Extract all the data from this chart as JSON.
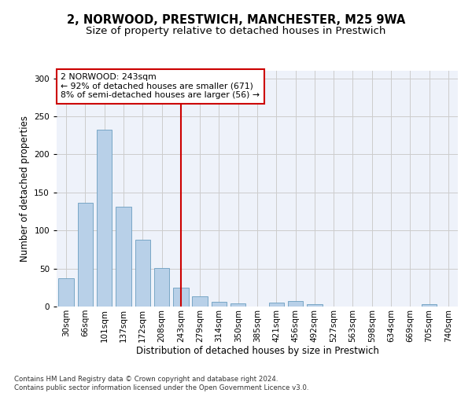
{
  "title1": "2, NORWOOD, PRESTWICH, MANCHESTER, M25 9WA",
  "title2": "Size of property relative to detached houses in Prestwich",
  "xlabel": "Distribution of detached houses by size in Prestwich",
  "ylabel": "Number of detached properties",
  "categories": [
    "30sqm",
    "66sqm",
    "101sqm",
    "137sqm",
    "172sqm",
    "208sqm",
    "243sqm",
    "279sqm",
    "314sqm",
    "350sqm",
    "385sqm",
    "421sqm",
    "456sqm",
    "492sqm",
    "527sqm",
    "563sqm",
    "598sqm",
    "634sqm",
    "669sqm",
    "705sqm",
    "740sqm"
  ],
  "values": [
    37,
    136,
    232,
    131,
    88,
    51,
    25,
    13,
    6,
    4,
    0,
    5,
    7,
    3,
    0,
    0,
    0,
    0,
    0,
    3,
    0
  ],
  "bar_color": "#b8d0e8",
  "bar_edge_color": "#6a9ec0",
  "highlight_index": 6,
  "highlight_color": "#cc0000",
  "annotation_text": "2 NORWOOD: 243sqm\n← 92% of detached houses are smaller (671)\n8% of semi-detached houses are larger (56) →",
  "annotation_box_color": "#ffffff",
  "annotation_box_edge_color": "#cc0000",
  "footnote": "Contains HM Land Registry data © Crown copyright and database right 2024.\nContains public sector information licensed under the Open Government Licence v3.0.",
  "ylim": [
    0,
    310
  ],
  "yticks": [
    0,
    50,
    100,
    150,
    200,
    250,
    300
  ],
  "grid_color": "#cccccc",
  "background_color": "#eef2fa",
  "title_fontsize": 10.5,
  "subtitle_fontsize": 9.5,
  "axis_label_fontsize": 8.5,
  "tick_fontsize": 7.5,
  "annotation_fontsize": 7.8,
  "footnote_fontsize": 6.2
}
